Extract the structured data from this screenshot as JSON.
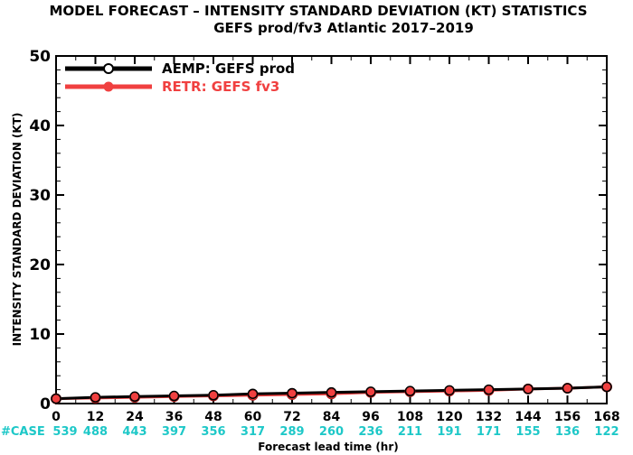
{
  "chart_data": {
    "type": "line",
    "title": "MODEL FORECAST – INTENSITY STANDARD DEVIATION (KT) STATISTICS",
    "subtitle": "GEFS prod/fv3 Atlantic 2017–2019",
    "xlabel": "Forecast lead time (hr)",
    "ylabel": "INTENSITY STANDARD DEVIATION (KT)",
    "x": [
      0,
      12,
      24,
      36,
      48,
      60,
      72,
      84,
      96,
      108,
      120,
      132,
      144,
      156,
      168
    ],
    "xlim": [
      0,
      168
    ],
    "ylim": [
      0,
      50
    ],
    "yticks": [
      0,
      10,
      20,
      30,
      40,
      50
    ],
    "grid": false,
    "legend": "top-left",
    "series": [
      {
        "name": "AEMP: GEFS prod",
        "color": "#000000",
        "marker": "open-circle",
        "values": [
          0.7,
          0.9,
          1.0,
          1.1,
          1.2,
          1.4,
          1.5,
          1.6,
          1.7,
          1.8,
          1.9,
          2.0,
          2.1,
          2.2,
          2.4
        ]
      },
      {
        "name": "RETR: GEFS fv3",
        "color": "#f04040",
        "marker": "filled-circle",
        "values": [
          0.7,
          0.8,
          0.9,
          1.0,
          1.1,
          1.2,
          1.3,
          1.4,
          1.6,
          1.7,
          1.8,
          1.9,
          2.1,
          2.2,
          2.4
        ]
      }
    ],
    "cases_label": "#CASE",
    "cases_color": "#1ec8c8",
    "cases": [
      539,
      488,
      443,
      397,
      356,
      317,
      289,
      260,
      236,
      211,
      191,
      171,
      155,
      136,
      122
    ]
  }
}
